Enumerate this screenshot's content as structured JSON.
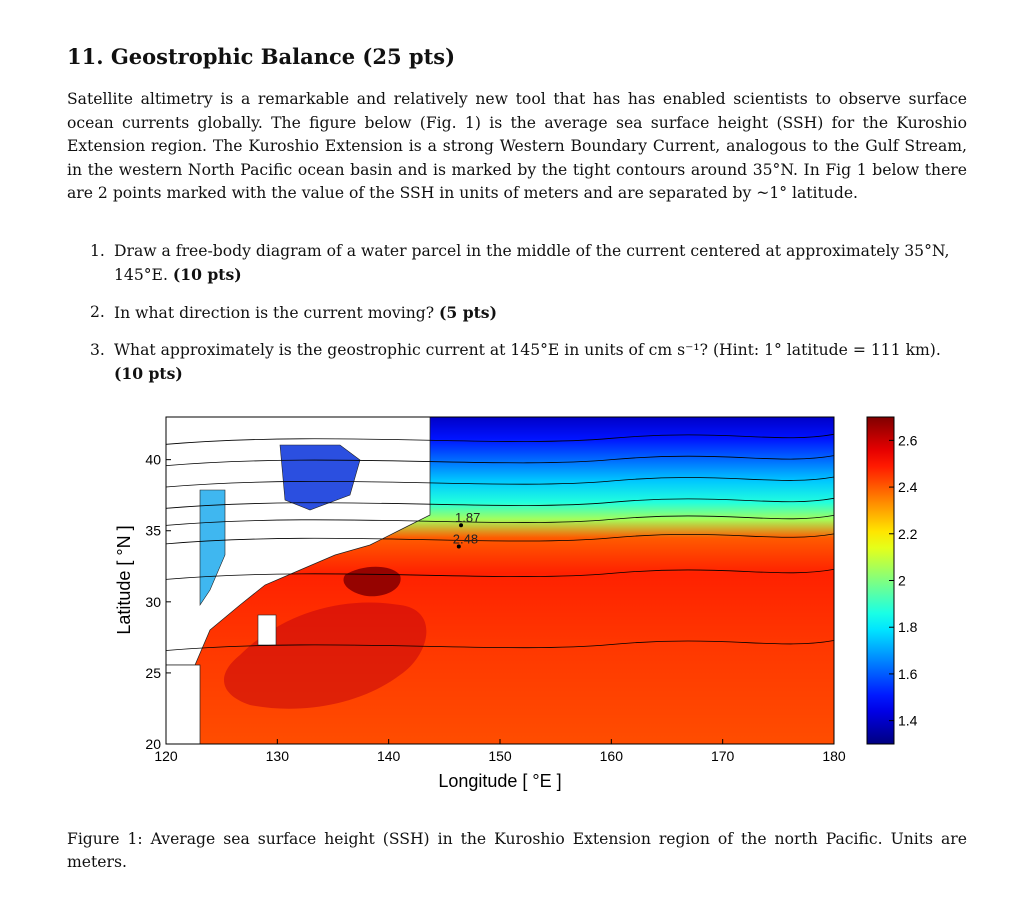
{
  "section": {
    "heading": "11. Geostrophic Balance (25 pts)",
    "paragraph": "Satellite altimetry is a remarkable and relatively new tool that has has enabled scientists to observe surface ocean currents globally. The figure below (Fig. 1) is the average sea surface height (SSH) for the Kuroshio Extension region. The Kuroshio Extension is a strong Western Boundary Current, analogous to the Gulf Stream, in the western North Pacific ocean basin and is marked by the tight contours around 35°N. In Fig 1 below there are 2 points marked with the value of the SSH in units of meters and are separated by ~1° latitude."
  },
  "questions": [
    {
      "num": "1.",
      "text": "Draw a free-body diagram of a water parcel in the middle of the current centered at approximately 35°N, 145°E. ",
      "pts": "(10 pts)"
    },
    {
      "num": "2.",
      "text": "In what direction is the current moving? ",
      "pts": "(5 pts)"
    },
    {
      "num": "3.",
      "text": "What approximately is the geostrophic current at 145°E in units of cm s⁻¹? (Hint: 1° latitude = 111 km). ",
      "pts": "(10 pts)"
    }
  ],
  "figure": {
    "caption": "Figure 1: Average sea surface height (SSH) in the Kuroshio Extension region of the north Pacific. Units are meters."
  },
  "chart_data": {
    "type": "heatmap",
    "title": "",
    "xlabel": "Longitude [ °E ]",
    "ylabel": "Latitude [ °N ]",
    "xlim": [
      120,
      180
    ],
    "ylim": [
      20,
      43
    ],
    "xticks": [
      120,
      130,
      140,
      150,
      160,
      170,
      180
    ],
    "yticks": [
      20,
      25,
      30,
      35,
      40
    ],
    "colorbar": {
      "min": 1.3,
      "max": 2.7,
      "ticks": [
        "2.6",
        "2.4",
        "2.2",
        "2",
        "1.8",
        "1.6",
        "1.4"
      ],
      "tick_values": [
        2.6,
        2.4,
        2.2,
        2.0,
        1.8,
        1.6,
        1.4
      ],
      "colormap": "jet"
    },
    "annotations": [
      {
        "text": "1.87",
        "lon": 146.5,
        "lat": 35.6
      },
      {
        "text": "2.48",
        "lon": 146.3,
        "lat": 34.1
      }
    ],
    "bands": [
      {
        "lat": 43.0,
        "ssh": 1.4
      },
      {
        "lat": 41.5,
        "ssh": 1.5
      },
      {
        "lat": 40.0,
        "ssh": 1.62
      },
      {
        "lat": 38.5,
        "ssh": 1.75
      },
      {
        "lat": 37.0,
        "ssh": 1.87
      },
      {
        "lat": 35.8,
        "ssh": 2.05
      },
      {
        "lat": 34.5,
        "ssh": 2.4
      },
      {
        "lat": 32.0,
        "ssh": 2.48
      },
      {
        "lat": 27.0,
        "ssh": 2.45
      },
      {
        "lat": 20.0,
        "ssh": 2.42
      }
    ]
  }
}
